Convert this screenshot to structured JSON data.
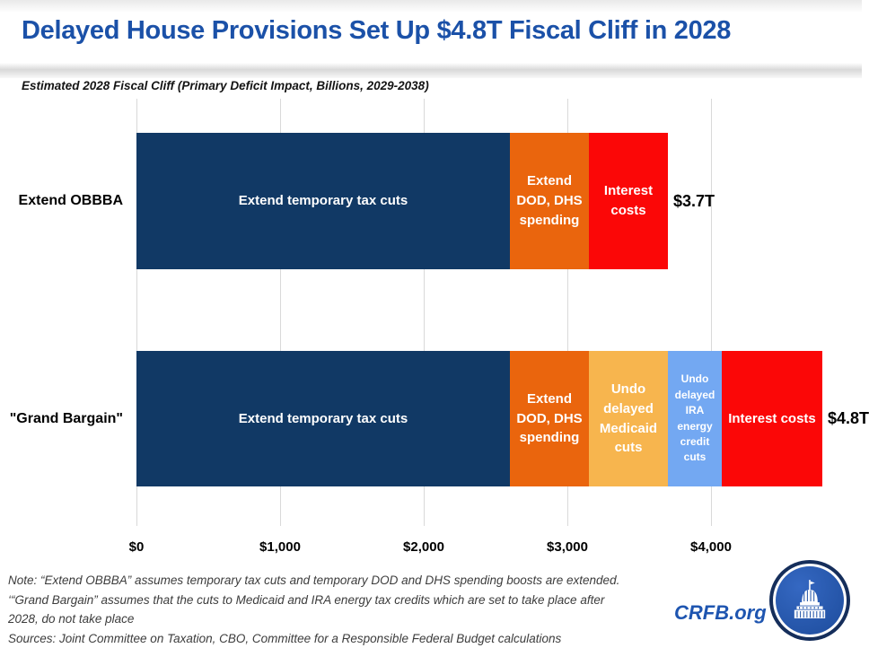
{
  "header": {
    "title": "Delayed House Provisions Set Up $4.8T Fiscal Cliff in 2028",
    "subtitle": "Estimated 2028 Fiscal Cliff (Primary Deficit Impact, Billions, 2029-2038)"
  },
  "colors": {
    "title_blue": "#1b51a8",
    "brand_blue": "#1e55b0",
    "navy": "#113965",
    "orange": "#ea650d",
    "amber": "#f7b54e",
    "light_blue": "#73a8f2",
    "red": "#fb0707",
    "gridline": "#d9d9d9"
  },
  "chart_data": {
    "type": "bar",
    "orientation": "horizontal",
    "title": "Estimated 2028 Fiscal Cliff (Primary Deficit Impact, Billions, 2029-2038)",
    "unit": "billions of dollars",
    "grid": true,
    "x_axis": {
      "min": 0,
      "max": 5000,
      "ticks": [
        0,
        1000,
        2000,
        3000,
        4000
      ],
      "tick_labels": [
        "$0",
        "$1,000",
        "$2,000",
        "$3,000",
        "$4,000"
      ]
    },
    "bars": [
      {
        "category": "Extend OBBBA",
        "total": 3700,
        "total_label": "$3.7T",
        "segments": [
          {
            "label": "Extend temporary tax cuts",
            "value": 2600,
            "color": "#113965"
          },
          {
            "label": "Extend DOD, DHS spending",
            "value": 550,
            "color": "#ea650d"
          },
          {
            "label": "Interest costs",
            "value": 550,
            "color": "#fb0707"
          }
        ]
      },
      {
        "category": "\"Grand Bargain\"",
        "total": 4775,
        "total_label": "$4.8T",
        "segments": [
          {
            "label": "Extend temporary tax cuts",
            "value": 2600,
            "color": "#113965"
          },
          {
            "label": "Extend DOD, DHS spending",
            "value": 550,
            "color": "#ea650d"
          },
          {
            "label": "Undo delayed Medicaid cuts",
            "value": 550,
            "color": "#f7b54e"
          },
          {
            "label": "Undo delayed IRA energy credit cuts",
            "value": 375,
            "color": "#73a8f2"
          },
          {
            "label": "Interest costs",
            "value": 700,
            "color": "#fb0707"
          }
        ]
      }
    ]
  },
  "footer": {
    "note_lines": [
      "Note: “Extend OBBBA” assumes temporary tax cuts and temporary DOD and DHS spending boosts are extended.",
      "‘“Grand Bargain” assumes that the cuts to Medicaid and IRA energy tax credits which are set to take place after",
      "2028, do not take place",
      "Sources: Joint Committee on Taxation, CBO, Committee for a Responsible Federal Budget calculations"
    ],
    "brand": "CRFB.org"
  }
}
